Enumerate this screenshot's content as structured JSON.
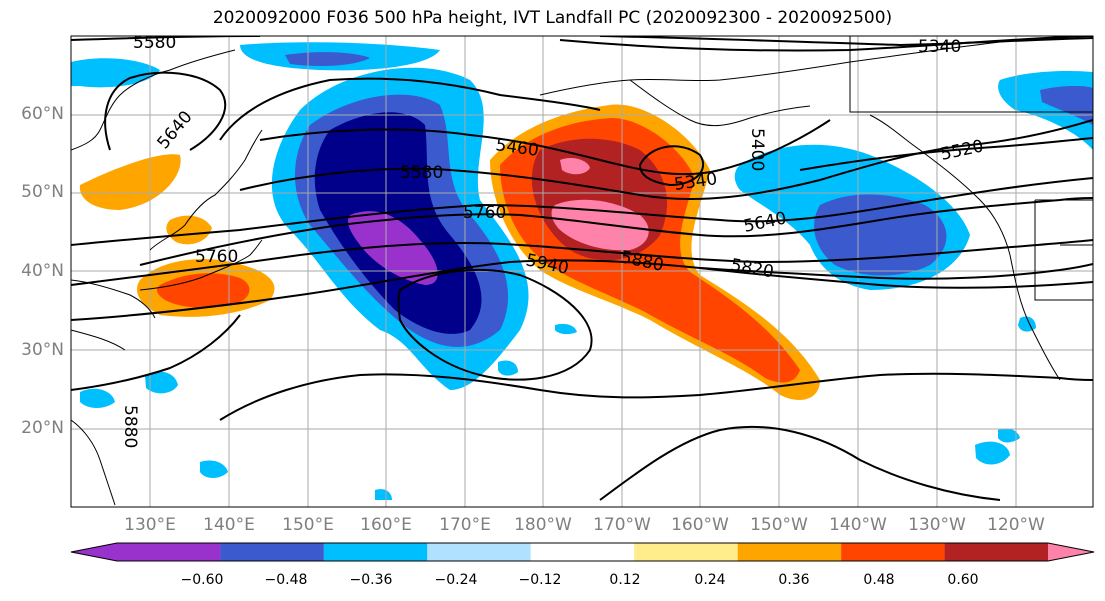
{
  "title": "2020092000 F036 500 hPa height, IVT Landfall PC (2020092300 - 2020092500)",
  "lat_labels": [
    "60°N",
    "50°N",
    "40°N",
    "30°N",
    "20°N"
  ],
  "lon_labels": [
    "130°E",
    "140°E",
    "150°E",
    "160°E",
    "170°E",
    "180°W",
    "170°W",
    "160°W",
    "150°W",
    "140°W",
    "130°W",
    "120°W"
  ],
  "colorbar": {
    "colors": [
      "#9932cc",
      "#00008b",
      "#3a5acd",
      "#00bfff",
      "#b0e2ff",
      "#ffffff",
      "#ffec8b",
      "#ffa500",
      "#ff4500",
      "#b22222",
      "#ff82ab"
    ],
    "tick_labels": [
      "−0.60",
      "−0.48",
      "−0.36",
      "−0.24",
      "−0.12",
      "0.12",
      "0.24",
      "0.36",
      "0.48",
      "0.60"
    ]
  },
  "contour_labels": [
    "5580",
    "5340",
    "5640",
    "5460",
    "5580",
    "5760",
    "5340",
    "5520",
    "5640",
    "5760",
    "5940",
    "5880",
    "5820",
    "5880",
    "5400"
  ]
}
